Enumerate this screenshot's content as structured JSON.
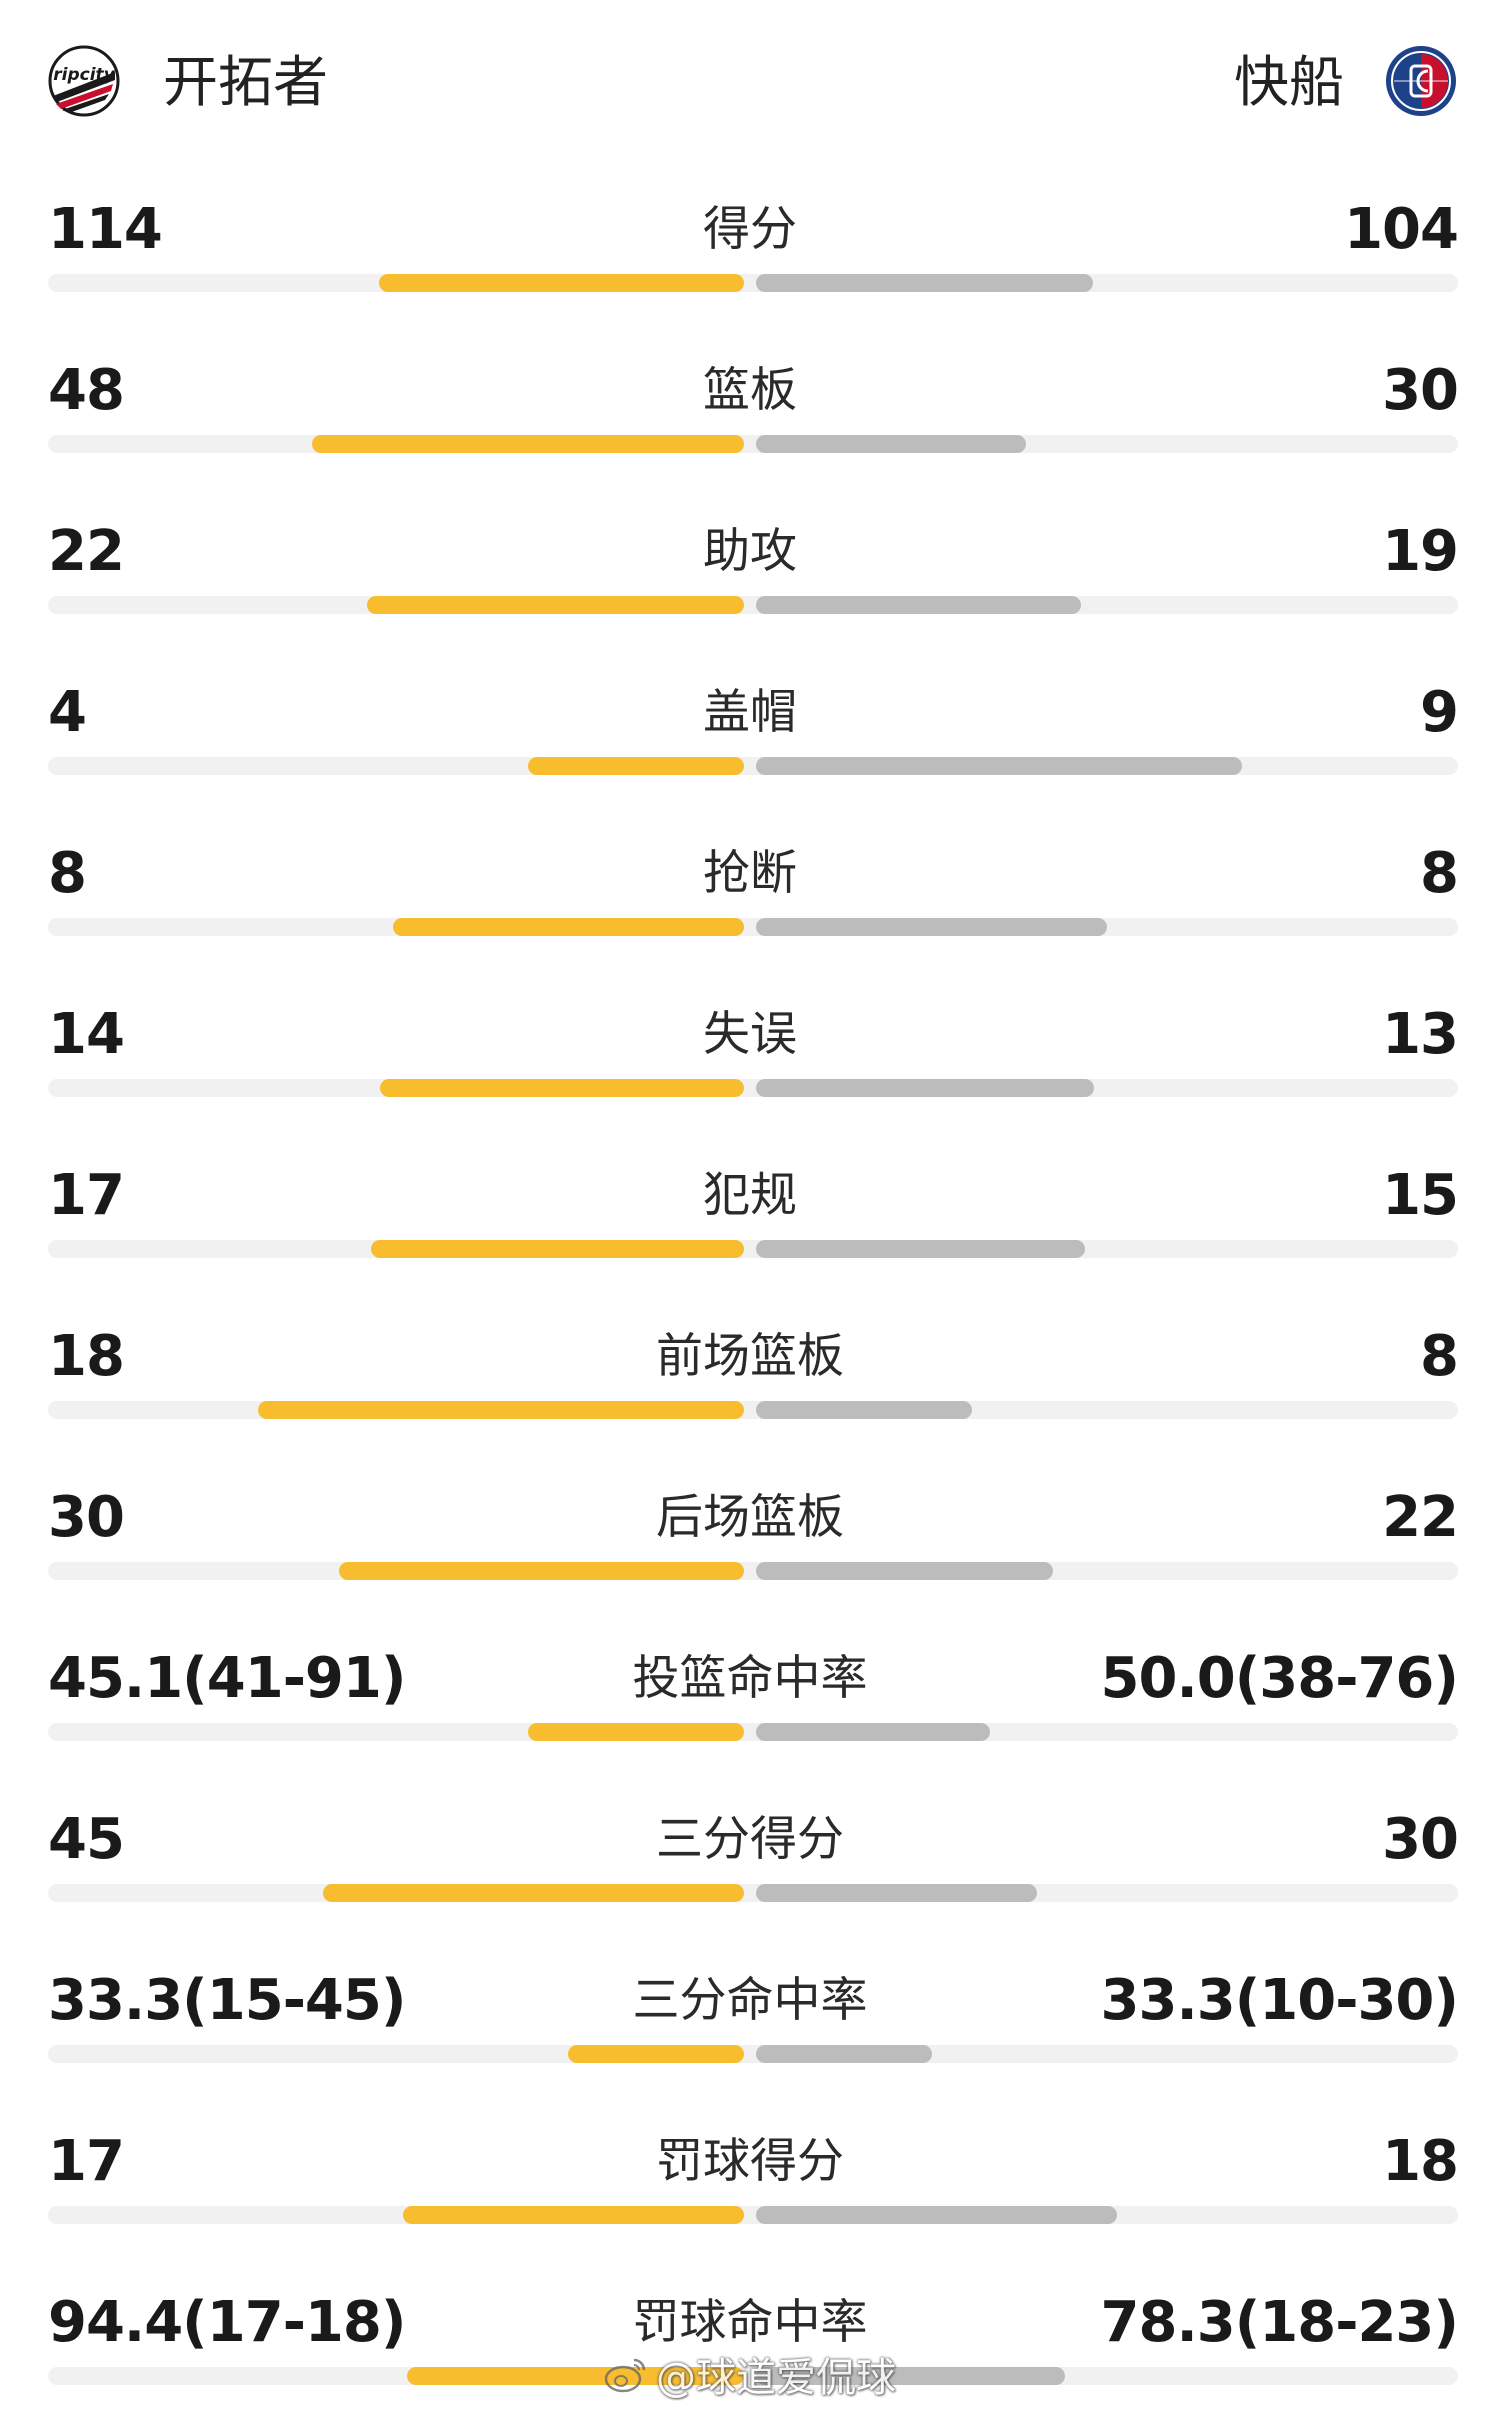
{
  "header": {
    "home_team": "开拓者",
    "away_team": "快船",
    "home_logo_text": "ripcity",
    "home_logo_icon": "trail-blazers-logo-icon",
    "away_logo_icon": "clippers-logo-icon"
  },
  "colors": {
    "home_bar": "#f7bd2f",
    "away_bar": "#bcbcbc",
    "track": "#f1f1f1"
  },
  "stats": [
    {
      "label": "得分",
      "home": "114",
      "away": "104",
      "home_fill": 0.52,
      "away_fill": 0.48
    },
    {
      "label": "篮板",
      "home": "48",
      "away": "30",
      "home_fill": 0.615,
      "away_fill": 0.385
    },
    {
      "label": "助攻",
      "home": "22",
      "away": "19",
      "home_fill": 0.537,
      "away_fill": 0.463
    },
    {
      "label": "盖帽",
      "home": "4",
      "away": "9",
      "home_fill": 0.308,
      "away_fill": 0.692
    },
    {
      "label": "抢断",
      "home": "8",
      "away": "8",
      "home_fill": 0.5,
      "away_fill": 0.5
    },
    {
      "label": "失误",
      "home": "14",
      "away": "13",
      "home_fill": 0.519,
      "away_fill": 0.481
    },
    {
      "label": "犯规",
      "home": "17",
      "away": "15",
      "home_fill": 0.531,
      "away_fill": 0.469
    },
    {
      "label": "前场篮板",
      "home": "18",
      "away": "8",
      "home_fill": 0.692,
      "away_fill": 0.308
    },
    {
      "label": "后场篮板",
      "home": "30",
      "away": "22",
      "home_fill": 0.577,
      "away_fill": 0.423
    },
    {
      "label": "投篮命中率",
      "home": "45.1(41-91)",
      "away": "50.0(38-76)",
      "home_fill": 0.307,
      "away_fill": 0.333
    },
    {
      "label": "三分得分",
      "home": "45",
      "away": "30",
      "home_fill": 0.6,
      "away_fill": 0.4
    },
    {
      "label": "三分命中率",
      "home": "33.3(15-45)",
      "away": "33.3(10-30)",
      "home_fill": 0.25,
      "away_fill": 0.25
    },
    {
      "label": "罚球得分",
      "home": "17",
      "away": "18",
      "home_fill": 0.486,
      "away_fill": 0.514
    },
    {
      "label": "罚球命中率",
      "home": "94.4(17-18)",
      "away": "78.3(18-23)",
      "home_fill": 0.48,
      "away_fill": 0.44
    }
  ],
  "watermark": {
    "text": "@球道爱侃球",
    "icon": "weibo-icon"
  }
}
